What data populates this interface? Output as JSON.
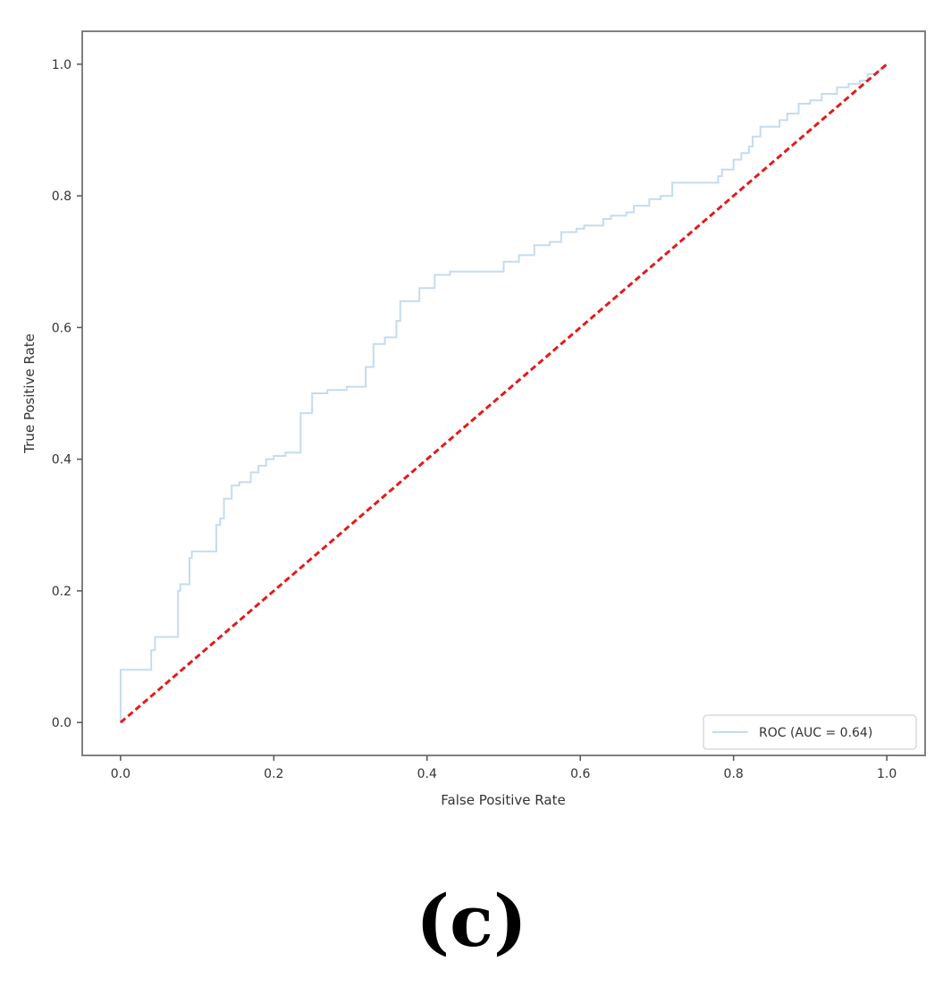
{
  "panel_label": "(c)",
  "chart_data": {
    "type": "line",
    "title": "",
    "xlabel": "False Positive Rate",
    "ylabel": "True Positive Rate",
    "xlim": [
      -0.05,
      1.05
    ],
    "ylim": [
      -0.05,
      1.05
    ],
    "xticks": [
      0.0,
      0.2,
      0.4,
      0.6,
      0.8,
      1.0
    ],
    "xtick_labels": [
      "0.0",
      "0.2",
      "0.4",
      "0.6",
      "0.8",
      "1.0"
    ],
    "yticks": [
      0.0,
      0.2,
      0.4,
      0.6,
      0.8,
      1.0
    ],
    "ytick_labels": [
      "0.0",
      "0.2",
      "0.4",
      "0.6",
      "0.8",
      "1.0"
    ],
    "grid": false,
    "legend_position": "lower-right",
    "series": [
      {
        "name": "ROC (AUC = 0.64)",
        "color": "#c6dbef",
        "style": "step",
        "x": [
          0.0,
          0.0,
          0.04,
          0.04,
          0.045,
          0.045,
          0.055,
          0.055,
          0.075,
          0.075,
          0.078,
          0.078,
          0.09,
          0.09,
          0.093,
          0.093,
          0.125,
          0.125,
          0.13,
          0.13,
          0.135,
          0.135,
          0.145,
          0.145,
          0.155,
          0.155,
          0.17,
          0.17,
          0.18,
          0.18,
          0.19,
          0.19,
          0.2,
          0.2,
          0.215,
          0.215,
          0.235,
          0.235,
          0.25,
          0.25,
          0.27,
          0.27,
          0.295,
          0.295,
          0.31,
          0.31,
          0.32,
          0.32,
          0.33,
          0.33,
          0.345,
          0.345,
          0.36,
          0.36,
          0.365,
          0.365,
          0.39,
          0.39,
          0.41,
          0.41,
          0.43,
          0.43,
          0.475,
          0.475,
          0.5,
          0.5,
          0.52,
          0.52,
          0.54,
          0.54,
          0.56,
          0.56,
          0.575,
          0.575,
          0.595,
          0.595,
          0.605,
          0.605,
          0.615,
          0.615,
          0.63,
          0.63,
          0.64,
          0.64,
          0.66,
          0.66,
          0.67,
          0.67,
          0.69,
          0.69,
          0.705,
          0.705,
          0.72,
          0.72,
          0.755,
          0.755,
          0.78,
          0.78,
          0.785,
          0.785,
          0.8,
          0.8,
          0.81,
          0.81,
          0.82,
          0.82,
          0.825,
          0.825,
          0.835,
          0.835,
          0.86,
          0.86,
          0.87,
          0.87,
          0.885,
          0.885,
          0.9,
          0.9,
          0.915,
          0.915,
          0.935,
          0.935,
          0.95,
          0.95,
          0.965,
          0.965,
          0.975,
          0.975,
          0.985,
          1.0
        ],
        "y": [
          0.0,
          0.08,
          0.08,
          0.11,
          0.11,
          0.13,
          0.13,
          0.13,
          0.13,
          0.2,
          0.2,
          0.21,
          0.21,
          0.25,
          0.25,
          0.26,
          0.26,
          0.3,
          0.3,
          0.31,
          0.31,
          0.34,
          0.34,
          0.36,
          0.36,
          0.365,
          0.365,
          0.38,
          0.38,
          0.39,
          0.39,
          0.4,
          0.4,
          0.405,
          0.405,
          0.41,
          0.41,
          0.47,
          0.47,
          0.5,
          0.5,
          0.505,
          0.505,
          0.51,
          0.51,
          0.51,
          0.51,
          0.54,
          0.54,
          0.575,
          0.575,
          0.585,
          0.585,
          0.61,
          0.61,
          0.64,
          0.64,
          0.66,
          0.66,
          0.68,
          0.68,
          0.685,
          0.685,
          0.685,
          0.685,
          0.7,
          0.7,
          0.71,
          0.71,
          0.725,
          0.725,
          0.73,
          0.73,
          0.745,
          0.745,
          0.75,
          0.75,
          0.755,
          0.755,
          0.755,
          0.755,
          0.765,
          0.765,
          0.77,
          0.77,
          0.775,
          0.775,
          0.785,
          0.785,
          0.795,
          0.795,
          0.8,
          0.8,
          0.82,
          0.82,
          0.82,
          0.82,
          0.83,
          0.83,
          0.84,
          0.84,
          0.855,
          0.855,
          0.865,
          0.865,
          0.875,
          0.875,
          0.89,
          0.89,
          0.905,
          0.905,
          0.915,
          0.915,
          0.925,
          0.925,
          0.94,
          0.94,
          0.945,
          0.945,
          0.955,
          0.955,
          0.965,
          0.965,
          0.97,
          0.97,
          0.975,
          0.975,
          0.985,
          0.985,
          1.0
        ]
      },
      {
        "name": "",
        "color": "#e41a1c",
        "style": "dashed",
        "x": [
          0.0,
          1.0
        ],
        "y": [
          0.0,
          1.0
        ]
      }
    ]
  }
}
